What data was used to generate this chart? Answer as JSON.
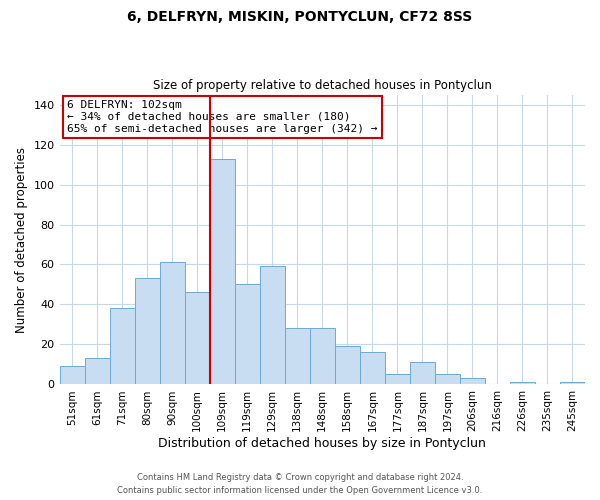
{
  "title": "6, DELFRYN, MISKIN, PONTYCLUN, CF72 8SS",
  "subtitle": "Size of property relative to detached houses in Pontyclun",
  "xlabel": "Distribution of detached houses by size in Pontyclun",
  "ylabel": "Number of detached properties",
  "bar_labels": [
    "51sqm",
    "61sqm",
    "71sqm",
    "80sqm",
    "90sqm",
    "100sqm",
    "109sqm",
    "119sqm",
    "129sqm",
    "138sqm",
    "148sqm",
    "158sqm",
    "167sqm",
    "177sqm",
    "187sqm",
    "197sqm",
    "206sqm",
    "216sqm",
    "226sqm",
    "235sqm",
    "245sqm"
  ],
  "bar_values": [
    9,
    13,
    38,
    53,
    61,
    46,
    113,
    50,
    59,
    28,
    28,
    19,
    16,
    5,
    11,
    5,
    3,
    0,
    1,
    0,
    1
  ],
  "bar_color": "#c9ddf2",
  "bar_edge_color": "#6aaad4",
  "vline_x": 5.5,
  "vline_color": "#cc0000",
  "annotation_title": "6 DELFRYN: 102sqm",
  "annotation_line1": "← 34% of detached houses are smaller (180)",
  "annotation_line2": "65% of semi-detached houses are larger (342) →",
  "annotation_box_color": "#cc0000",
  "ylim": [
    0,
    145
  ],
  "yticks": [
    0,
    20,
    40,
    60,
    80,
    100,
    120,
    140
  ],
  "footnote1": "Contains HM Land Registry data © Crown copyright and database right 2024.",
  "footnote2": "Contains public sector information licensed under the Open Government Licence v3.0.",
  "bg_color": "#ffffff",
  "grid_color": "#c8d8e8"
}
